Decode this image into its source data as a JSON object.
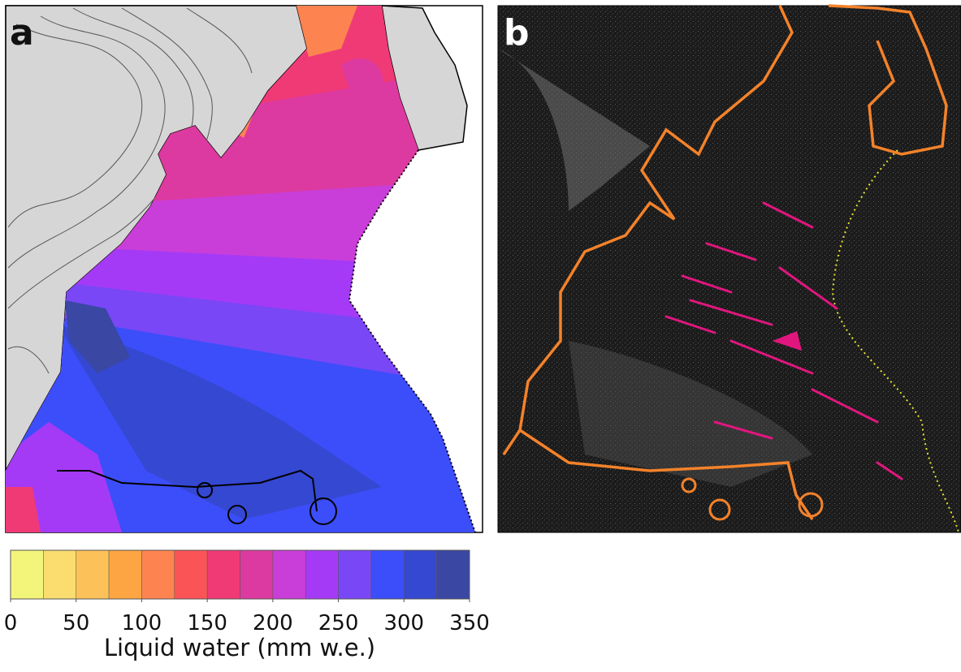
{
  "panels": [
    {
      "label": "a"
    },
    {
      "label": "b"
    }
  ],
  "colorbar": {
    "label": "Liquid water (mm w.e.)",
    "bounds": [
      0,
      25,
      50,
      75,
      100,
      125,
      150,
      175,
      200,
      225,
      250,
      275,
      300,
      325,
      350
    ],
    "colors": [
      "#f3f57b",
      "#fadd6e",
      "#fcc259",
      "#fca542",
      "#fd8450",
      "#fb5457",
      "#f03a76",
      "#dc3aa0",
      "#c93ed8",
      "#a53af6",
      "#7947f6",
      "#3c4ef9",
      "#3548d2",
      "#3a47a3"
    ],
    "ticks": [
      0,
      50,
      100,
      150,
      200,
      250,
      300,
      350
    ]
  }
}
